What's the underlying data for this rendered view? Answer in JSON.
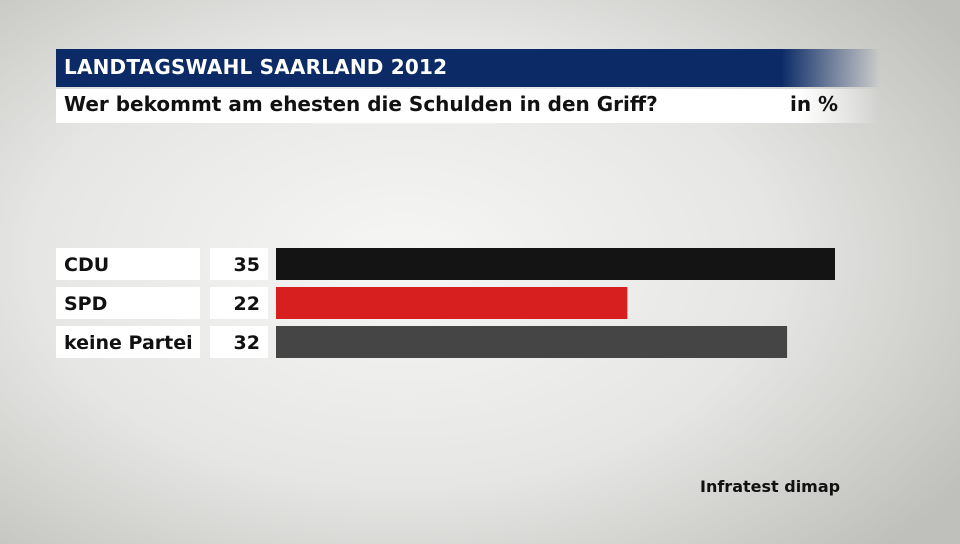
{
  "header": {
    "title": "LANDTAGSWAHL SAARLAND 2012",
    "subtitle": "Wer bekommt am ehesten die Schulden in den Griff?",
    "unit": "in %"
  },
  "source": "Infratest dimap",
  "chart_data": {
    "type": "bar",
    "orientation": "horizontal",
    "categories": [
      "CDU",
      "SPD",
      "keine Partei"
    ],
    "values": [
      35,
      22,
      32
    ],
    "colors": [
      "#141414",
      "#d81f1f",
      "#454545"
    ],
    "unit": "in %",
    "xlim": [
      0,
      35
    ],
    "grid": false
  }
}
